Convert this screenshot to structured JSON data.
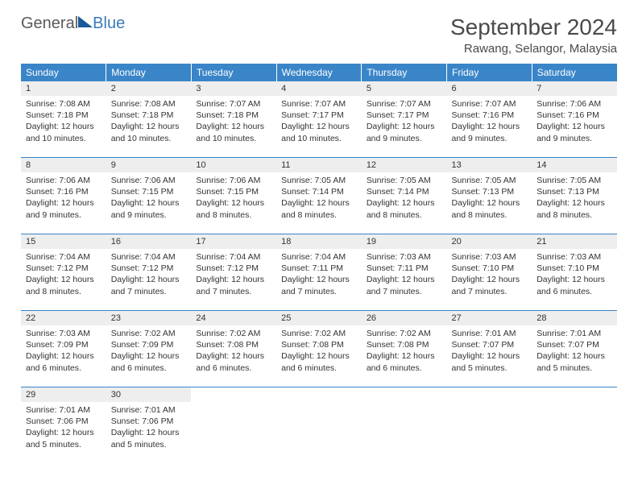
{
  "logo": {
    "part1": "General",
    "part2": "Blue"
  },
  "title": "September 2024",
  "location": "Rawang, Selangor, Malaysia",
  "header_bg": "#3a85c8",
  "daynum_bg": "#eeeeee",
  "sep_color": "#3a85c8",
  "text_color": "#333333",
  "days_of_week": [
    "Sunday",
    "Monday",
    "Tuesday",
    "Wednesday",
    "Thursday",
    "Friday",
    "Saturday"
  ],
  "weeks": [
    [
      {
        "n": "1",
        "sr": "7:08 AM",
        "ss": "7:18 PM",
        "dl": "12 hours and 10 minutes."
      },
      {
        "n": "2",
        "sr": "7:08 AM",
        "ss": "7:18 PM",
        "dl": "12 hours and 10 minutes."
      },
      {
        "n": "3",
        "sr": "7:07 AM",
        "ss": "7:18 PM",
        "dl": "12 hours and 10 minutes."
      },
      {
        "n": "4",
        "sr": "7:07 AM",
        "ss": "7:17 PM",
        "dl": "12 hours and 10 minutes."
      },
      {
        "n": "5",
        "sr": "7:07 AM",
        "ss": "7:17 PM",
        "dl": "12 hours and 9 minutes."
      },
      {
        "n": "6",
        "sr": "7:07 AM",
        "ss": "7:16 PM",
        "dl": "12 hours and 9 minutes."
      },
      {
        "n": "7",
        "sr": "7:06 AM",
        "ss": "7:16 PM",
        "dl": "12 hours and 9 minutes."
      }
    ],
    [
      {
        "n": "8",
        "sr": "7:06 AM",
        "ss": "7:16 PM",
        "dl": "12 hours and 9 minutes."
      },
      {
        "n": "9",
        "sr": "7:06 AM",
        "ss": "7:15 PM",
        "dl": "12 hours and 9 minutes."
      },
      {
        "n": "10",
        "sr": "7:06 AM",
        "ss": "7:15 PM",
        "dl": "12 hours and 8 minutes."
      },
      {
        "n": "11",
        "sr": "7:05 AM",
        "ss": "7:14 PM",
        "dl": "12 hours and 8 minutes."
      },
      {
        "n": "12",
        "sr": "7:05 AM",
        "ss": "7:14 PM",
        "dl": "12 hours and 8 minutes."
      },
      {
        "n": "13",
        "sr": "7:05 AM",
        "ss": "7:13 PM",
        "dl": "12 hours and 8 minutes."
      },
      {
        "n": "14",
        "sr": "7:05 AM",
        "ss": "7:13 PM",
        "dl": "12 hours and 8 minutes."
      }
    ],
    [
      {
        "n": "15",
        "sr": "7:04 AM",
        "ss": "7:12 PM",
        "dl": "12 hours and 8 minutes."
      },
      {
        "n": "16",
        "sr": "7:04 AM",
        "ss": "7:12 PM",
        "dl": "12 hours and 7 minutes."
      },
      {
        "n": "17",
        "sr": "7:04 AM",
        "ss": "7:12 PM",
        "dl": "12 hours and 7 minutes."
      },
      {
        "n": "18",
        "sr": "7:04 AM",
        "ss": "7:11 PM",
        "dl": "12 hours and 7 minutes."
      },
      {
        "n": "19",
        "sr": "7:03 AM",
        "ss": "7:11 PM",
        "dl": "12 hours and 7 minutes."
      },
      {
        "n": "20",
        "sr": "7:03 AM",
        "ss": "7:10 PM",
        "dl": "12 hours and 7 minutes."
      },
      {
        "n": "21",
        "sr": "7:03 AM",
        "ss": "7:10 PM",
        "dl": "12 hours and 6 minutes."
      }
    ],
    [
      {
        "n": "22",
        "sr": "7:03 AM",
        "ss": "7:09 PM",
        "dl": "12 hours and 6 minutes."
      },
      {
        "n": "23",
        "sr": "7:02 AM",
        "ss": "7:09 PM",
        "dl": "12 hours and 6 minutes."
      },
      {
        "n": "24",
        "sr": "7:02 AM",
        "ss": "7:08 PM",
        "dl": "12 hours and 6 minutes."
      },
      {
        "n": "25",
        "sr": "7:02 AM",
        "ss": "7:08 PM",
        "dl": "12 hours and 6 minutes."
      },
      {
        "n": "26",
        "sr": "7:02 AM",
        "ss": "7:08 PM",
        "dl": "12 hours and 6 minutes."
      },
      {
        "n": "27",
        "sr": "7:01 AM",
        "ss": "7:07 PM",
        "dl": "12 hours and 5 minutes."
      },
      {
        "n": "28",
        "sr": "7:01 AM",
        "ss": "7:07 PM",
        "dl": "12 hours and 5 minutes."
      }
    ],
    [
      {
        "n": "29",
        "sr": "7:01 AM",
        "ss": "7:06 PM",
        "dl": "12 hours and 5 minutes."
      },
      {
        "n": "30",
        "sr": "7:01 AM",
        "ss": "7:06 PM",
        "dl": "12 hours and 5 minutes."
      },
      null,
      null,
      null,
      null,
      null
    ]
  ],
  "labels": {
    "sunrise": "Sunrise: ",
    "sunset": "Sunset: ",
    "daylight": "Daylight: "
  }
}
